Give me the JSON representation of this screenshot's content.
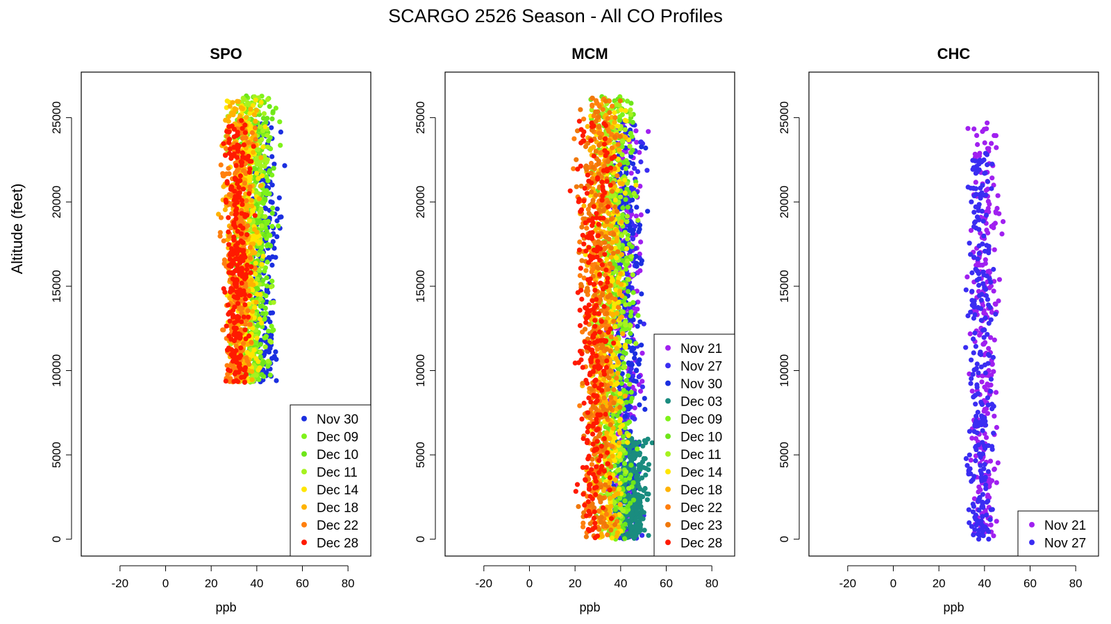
{
  "figure": {
    "title": "SCARGO 2526 Season - All CO Profiles",
    "ylabel": "Altitude (feet)"
  },
  "chart_data": [
    {
      "type": "scatter",
      "title": "SPO",
      "xlabel": "ppb",
      "ylabel": "Altitude (feet)",
      "xlim": [
        -37,
        90
      ],
      "ylim": [
        -1000,
        27700
      ],
      "xticks": [
        -20,
        0,
        20,
        40,
        60,
        80
      ],
      "yticks": [
        0,
        5000,
        10000,
        15000,
        20000,
        25000
      ],
      "legend_position": "bottom-right",
      "series": [
        {
          "name": "Nov 30",
          "color": "#1b2fe0",
          "alt_range": [
            9300,
            24700
          ],
          "center": 38,
          "spread": 10,
          "offset": 8
        },
        {
          "name": "Dec 09",
          "color": "#7ff21a",
          "alt_range": [
            9300,
            26300
          ],
          "center": 37,
          "spread": 11,
          "offset": 4
        },
        {
          "name": "Dec 10",
          "color": "#6ee61a",
          "alt_range": [
            9300,
            26300
          ],
          "center": 36,
          "spread": 11,
          "offset": 3
        },
        {
          "name": "Dec 11",
          "color": "#a6f21f",
          "alt_range": [
            9300,
            26400
          ],
          "center": 35,
          "spread": 11,
          "offset": 3
        },
        {
          "name": "Dec 14",
          "color": "#ffe600",
          "alt_range": [
            9300,
            26100
          ],
          "center": 34,
          "spread": 10,
          "offset": 1
        },
        {
          "name": "Dec 18",
          "color": "#ffb300",
          "alt_range": [
            9300,
            26000
          ],
          "center": 33,
          "spread": 10,
          "offset": 0
        },
        {
          "name": "Dec 22",
          "color": "#ff7f0e",
          "alt_range": [
            9300,
            24800
          ],
          "center": 32,
          "spread": 9,
          "offset": -1
        },
        {
          "name": "Dec 28",
          "color": "#ff1a00",
          "alt_range": [
            9300,
            24900
          ],
          "center": 32,
          "spread": 8,
          "offset": -1
        }
      ]
    },
    {
      "type": "scatter",
      "title": "MCM",
      "xlabel": "ppb",
      "ylabel": "",
      "xlim": [
        -37,
        90
      ],
      "ylim": [
        -1000,
        27700
      ],
      "xticks": [
        -20,
        0,
        20,
        40,
        60,
        80
      ],
      "yticks": [
        0,
        5000,
        10000,
        15000,
        20000,
        25000
      ],
      "legend_position": "bottom-right",
      "series": [
        {
          "name": "Nov 21",
          "color": "#a020f0",
          "alt_range": [
            0,
            24800
          ],
          "center": 36,
          "spread": 10,
          "offset": 10
        },
        {
          "name": "Nov 27",
          "color": "#3a2df2",
          "alt_range": [
            0,
            24800
          ],
          "center": 36,
          "spread": 10,
          "offset": 10
        },
        {
          "name": "Nov 30",
          "color": "#1b2fe0",
          "alt_range": [
            0,
            24800
          ],
          "center": 36,
          "spread": 10,
          "offset": 10
        },
        {
          "name": "Dec 03",
          "color": "#1a8c7f",
          "alt_range": [
            0,
            6000
          ],
          "center": 38,
          "spread": 9,
          "offset": 12
        },
        {
          "name": "Dec 09",
          "color": "#7ff21a",
          "alt_range": [
            0,
            26300
          ],
          "center": 34,
          "spread": 11,
          "offset": 6
        },
        {
          "name": "Dec 10",
          "color": "#6ee61a",
          "alt_range": [
            0,
            26300
          ],
          "center": 34,
          "spread": 11,
          "offset": 6
        },
        {
          "name": "Dec 11",
          "color": "#a6f21f",
          "alt_range": [
            0,
            26300
          ],
          "center": 34,
          "spread": 11,
          "offset": 5
        },
        {
          "name": "Dec 14",
          "color": "#ffe600",
          "alt_range": [
            0,
            26000
          ],
          "center": 33,
          "spread": 11,
          "offset": 3
        },
        {
          "name": "Dec 18",
          "color": "#ffb300",
          "alt_range": [
            0,
            26100
          ],
          "center": 32,
          "spread": 11,
          "offset": 2
        },
        {
          "name": "Dec 22",
          "color": "#ff7f0e",
          "alt_range": [
            0,
            26200
          ],
          "center": 30,
          "spread": 11,
          "offset": 0
        },
        {
          "name": "Dec 23",
          "color": "#f0780a",
          "alt_range": [
            0,
            26200
          ],
          "center": 30,
          "spread": 11,
          "offset": 0
        },
        {
          "name": "Dec 28",
          "color": "#ff1a00",
          "alt_range": [
            0,
            24800
          ],
          "center": 29,
          "spread": 10,
          "offset": -1
        }
      ]
    },
    {
      "type": "scatter",
      "title": "CHC",
      "xlabel": "ppb",
      "ylabel": "",
      "xlim": [
        -37,
        90
      ],
      "ylim": [
        -1000,
        27700
      ],
      "xticks": [
        -20,
        0,
        20,
        40,
        60,
        80
      ],
      "yticks": [
        0,
        5000,
        10000,
        15000,
        20000,
        25000
      ],
      "legend_position": "bottom-right",
      "series": [
        {
          "name": "Nov 21",
          "color": "#a020f0",
          "alt_range": [
            0,
            24700
          ],
          "center": 40,
          "spread": 8,
          "offset": 0
        },
        {
          "name": "Nov 27",
          "color": "#3a2df2",
          "alt_range": [
            0,
            22900
          ],
          "center": 38,
          "spread": 8,
          "offset": 0
        }
      ]
    }
  ]
}
